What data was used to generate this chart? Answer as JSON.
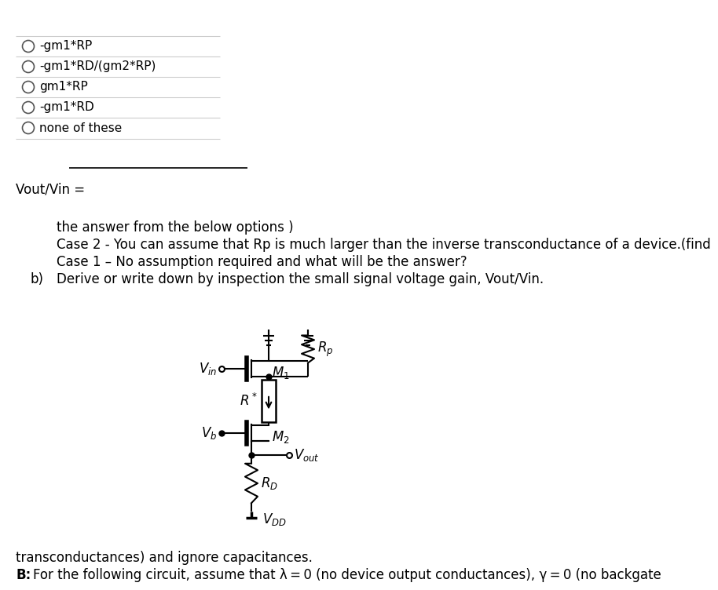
{
  "bg_color": "#ffffff",
  "title_bold": "B:",
  "title_rest": " For the following circuit, assume that λ = 0 (no device output conductances), γ = 0 (no backgate",
  "title_line2": "transconductances) and ignore capacitances.",
  "q_b_label": "b)",
  "q_b_line1": "Derive or write down by inspection the small signal voltage gain, Vout/Vin.",
  "q_b_line2": "Case 1 – No assumption required and what will be the answer?",
  "q_b_line3": "Case 2 - You can assume that Rp is much larger than the inverse transconductance of a device.(find",
  "q_b_line4": "the answer from the below options )",
  "answer_label": "Vout/Vin =",
  "options": [
    "none of these",
    "-gm1*RD",
    "gm1*RP",
    "-gm1*RD/(gm2*RP)",
    "-gm1*RP"
  ],
  "sep_color": "#cccccc",
  "text_color": "#000000",
  "fs_main": 12,
  "fs_opt": 11
}
